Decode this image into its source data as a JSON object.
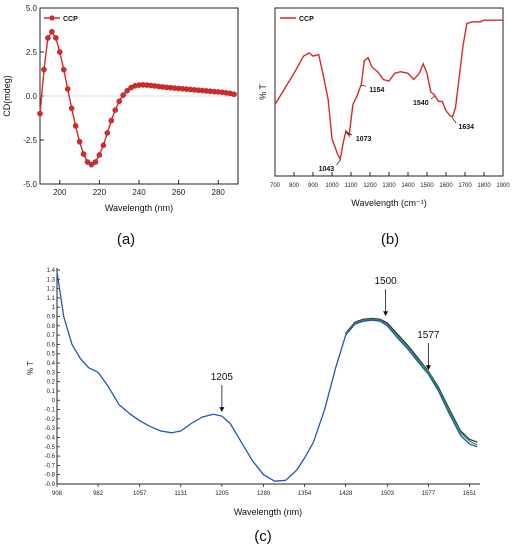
{
  "chart_data": [
    {
      "panel_label": "(a)",
      "type": "line",
      "xlabel": "Wavelength (nm)",
      "ylabel": "CD(mdeg)",
      "xlim": [
        190,
        290
      ],
      "ylim": [
        -5.0,
        5.0
      ],
      "xticks": [
        200,
        220,
        240,
        260,
        280
      ],
      "xtick_labels": [
        "200",
        "220",
        "240",
        "260",
        "280"
      ],
      "yticks": [
        -5.0,
        -2.5,
        0.0,
        2.5,
        5.0
      ],
      "ytick_labels": [
        "-5.0",
        "-2.5",
        "0.0",
        "2.5",
        "5.0"
      ],
      "legend": "top-left",
      "color": "#d42a2a",
      "series": [
        {
          "name": "CCP",
          "x": [
            190,
            192,
            194,
            196,
            198,
            200,
            202,
            204,
            206,
            208,
            210,
            212,
            214,
            216,
            218,
            220,
            222,
            224,
            226,
            228,
            230,
            232,
            234,
            236,
            238,
            240,
            242,
            244,
            246,
            248,
            250,
            252,
            254,
            256,
            258,
            260,
            262,
            264,
            266,
            268,
            270,
            272,
            274,
            276,
            278,
            280,
            282,
            284,
            286,
            288
          ],
          "y": [
            -1.0,
            1.5,
            3.3,
            3.65,
            3.3,
            2.5,
            1.5,
            0.4,
            -0.7,
            -1.7,
            -2.6,
            -3.3,
            -3.75,
            -3.9,
            -3.75,
            -3.35,
            -2.8,
            -2.1,
            -1.4,
            -0.8,
            -0.3,
            0.05,
            0.3,
            0.48,
            0.58,
            0.62,
            0.63,
            0.62,
            0.6,
            0.57,
            0.54,
            0.51,
            0.49,
            0.47,
            0.45,
            0.43,
            0.41,
            0.39,
            0.37,
            0.35,
            0.33,
            0.31,
            0.29,
            0.27,
            0.25,
            0.23,
            0.21,
            0.18,
            0.15,
            0.1
          ]
        }
      ]
    },
    {
      "panel_label": "(b)",
      "type": "line",
      "xlabel": "Wavelength (cm⁻¹)",
      "ylabel": "% T",
      "xlim": [
        700,
        1900
      ],
      "ylim": [
        0,
        100
      ],
      "xticks": [
        700,
        800,
        900,
        1000,
        1100,
        1200,
        1300,
        1400,
        1500,
        1600,
        1700,
        1800,
        1900
      ],
      "xtick_labels": [
        "700",
        "800",
        "900",
        "1000",
        "1100",
        "1200",
        "1300",
        "1400",
        "1500",
        "1600",
        "1700",
        "1800",
        "1900"
      ],
      "legend": "top-left",
      "color": "#d42a2a",
      "series": [
        {
          "name": "CCP",
          "x": [
            700,
            750,
            800,
            850,
            880,
            900,
            930,
            950,
            980,
            1000,
            1030,
            1043,
            1060,
            1073,
            1090,
            1110,
            1130,
            1154,
            1170,
            1190,
            1210,
            1240,
            1270,
            1300,
            1330,
            1360,
            1400,
            1430,
            1460,
            1480,
            1500,
            1520,
            1540,
            1560,
            1580,
            1600,
            1620,
            1634,
            1650,
            1670,
            1690,
            1710,
            1740,
            1780,
            1800,
            1850,
            1900
          ],
          "y": [
            42,
            52,
            62,
            73,
            75,
            73,
            74,
            63,
            45,
            20,
            10,
            7,
            18,
            25,
            22,
            42,
            47,
            55,
            70,
            72,
            66,
            63,
            58,
            57,
            62,
            63,
            62,
            58,
            62,
            68,
            62,
            50,
            48,
            44,
            44,
            38,
            35,
            34,
            40,
            60,
            80,
            94,
            95,
            95,
            96,
            96,
            96
          ]
        }
      ],
      "annotations": [
        {
          "text": "1043",
          "x": 1043,
          "y": 7
        },
        {
          "text": "1073",
          "x": 1073,
          "y": 25
        },
        {
          "text": "1154",
          "x": 1154,
          "y": 55
        },
        {
          "text": "1540",
          "x": 1540,
          "y": 48
        },
        {
          "text": "1634",
          "x": 1634,
          "y": 34
        }
      ]
    },
    {
      "panel_label": "(c)",
      "type": "line",
      "xlabel": "Wavelength (nm)",
      "ylabel": "% T",
      "xlim": [
        908,
        1670
      ],
      "ylim": [
        -0.9,
        1.4
      ],
      "xticks": [
        908,
        982,
        1057,
        1131,
        1205,
        1280,
        1354,
        1428,
        1503,
        1577,
        1651
      ],
      "xtick_labels": [
        "908",
        "982",
        "1057",
        "1131",
        "1205",
        "1280",
        "1354",
        "1428",
        "1503",
        "1577",
        "1651"
      ],
      "yticks": [
        -0.9,
        -0.8,
        -0.7,
        -0.6,
        -0.5,
        -0.4,
        -0.3,
        -0.2,
        -0.1,
        0,
        0.1,
        0.2,
        0.3,
        0.4,
        0.5,
        0.6,
        0.7,
        0.8,
        0.9,
        1,
        1.1,
        1.2,
        1.3,
        1.4
      ],
      "ytick_labels": [
        "-0.9",
        "-0.8",
        "-0.7",
        "-0.6",
        "-0.5",
        "-0.4",
        "-0.3",
        "-0.2",
        "-0.1",
        "0",
        "0.1",
        "0.2",
        "0.3",
        "0.4",
        "0.5",
        "0.6",
        "0.7",
        "0.8",
        "0.9",
        "1",
        "1.1",
        "1.2",
        "1.3",
        "1.4"
      ],
      "series": [
        {
          "color": "#2255bb",
          "x": [
            908,
            920,
            935,
            950,
            965,
            982,
            1000,
            1020,
            1040,
            1057,
            1075,
            1095,
            1115,
            1131,
            1150,
            1170,
            1190,
            1205,
            1220,
            1240,
            1260,
            1280,
            1300,
            1320,
            1340,
            1354,
            1370,
            1390,
            1410,
            1428,
            1445,
            1460,
            1475,
            1490,
            1503,
            1520,
            1540,
            1560,
            1577,
            1595,
            1615,
            1635,
            1651,
            1665
          ],
          "y": [
            1.38,
            0.9,
            0.6,
            0.45,
            0.35,
            0.3,
            0.15,
            -0.05,
            -0.15,
            -0.22,
            -0.28,
            -0.33,
            -0.35,
            -0.33,
            -0.25,
            -0.18,
            -0.15,
            -0.17,
            -0.25,
            -0.45,
            -0.65,
            -0.8,
            -0.87,
            -0.86,
            -0.75,
            -0.62,
            -0.45,
            -0.1,
            0.35,
            0.7,
            0.82,
            0.85,
            0.86,
            0.85,
            0.8,
            0.68,
            0.55,
            0.4,
            0.28,
            0.1,
            -0.15,
            -0.38,
            -0.47,
            -0.5
          ]
        },
        {
          "color": "#333333",
          "x": [
            1428,
            1445,
            1460,
            1475,
            1490,
            1503,
            1520,
            1540,
            1560,
            1577,
            1595,
            1615,
            1635,
            1651,
            1665
          ],
          "y": [
            0.72,
            0.84,
            0.87,
            0.88,
            0.87,
            0.83,
            0.72,
            0.59,
            0.44,
            0.31,
            0.14,
            -0.1,
            -0.33,
            -0.42,
            -0.45
          ]
        },
        {
          "color": "#2a9a4a",
          "x": [
            1428,
            1445,
            1460,
            1475,
            1490,
            1503,
            1520,
            1540,
            1560,
            1577,
            1595,
            1615,
            1635,
            1651,
            1665
          ],
          "y": [
            0.71,
            0.83,
            0.86,
            0.87,
            0.86,
            0.81,
            0.7,
            0.57,
            0.42,
            0.3,
            0.12,
            -0.12,
            -0.35,
            -0.44,
            -0.48
          ]
        }
      ],
      "annotations": [
        {
          "text": "1205",
          "x": 1205,
          "y": -0.17
        },
        {
          "text": "1500",
          "x": 1500,
          "y": 0.86
        },
        {
          "text": "1577",
          "x": 1577,
          "y": 0.28
        }
      ]
    }
  ]
}
